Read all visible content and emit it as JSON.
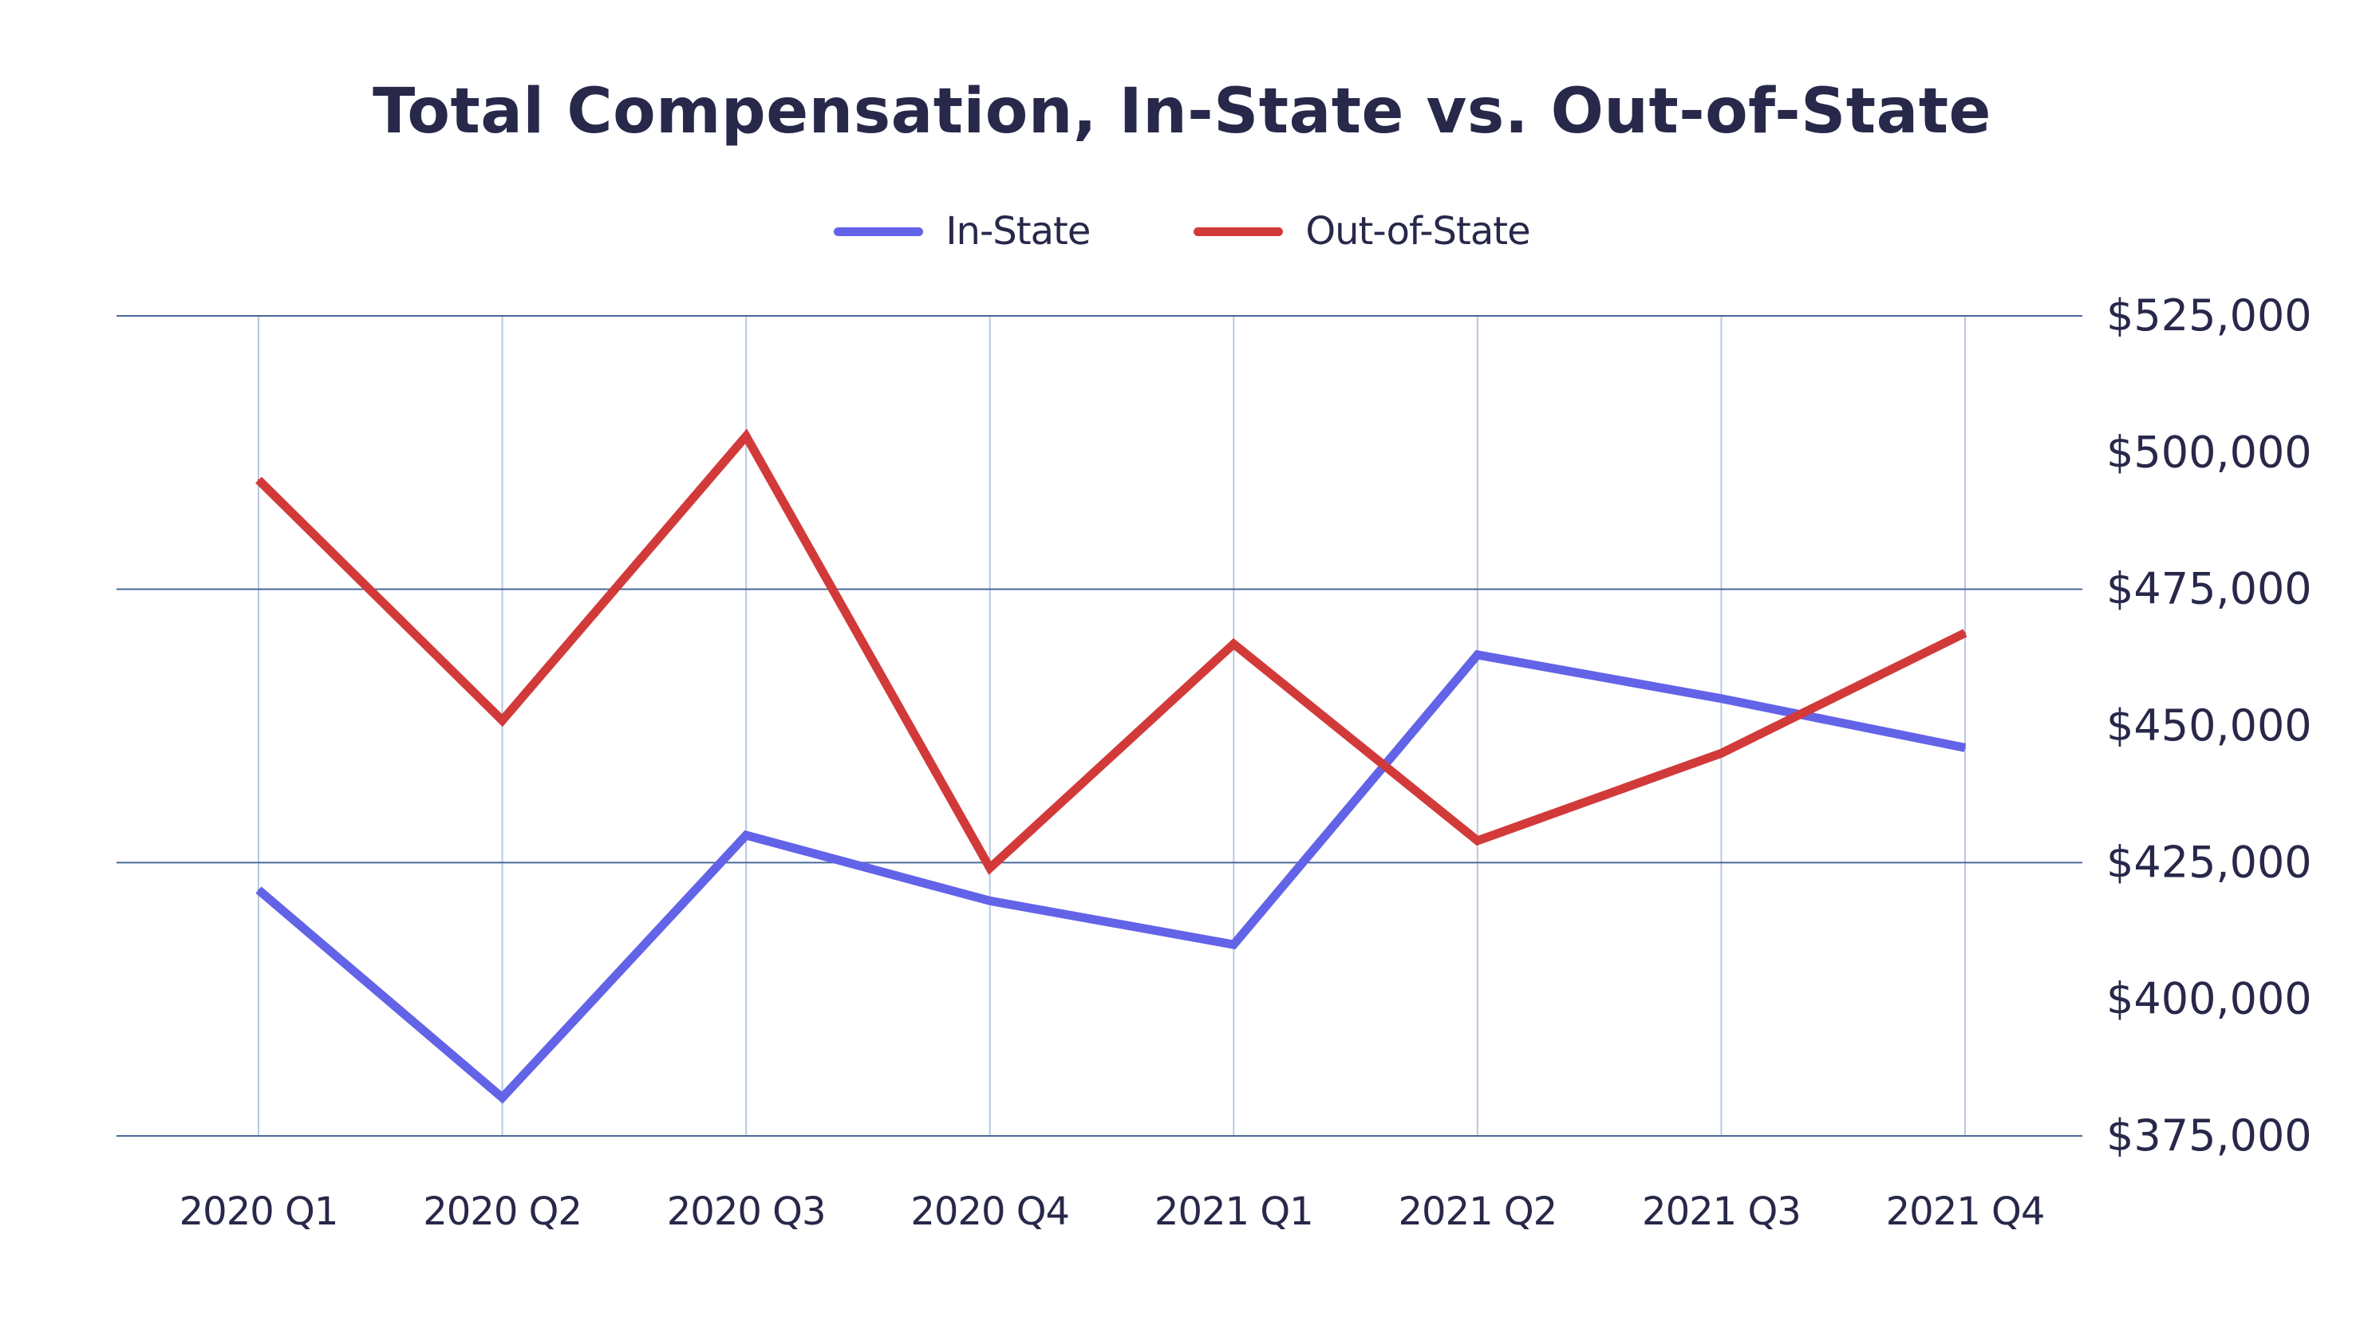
{
  "chart_data": {
    "type": "line",
    "title": "Total Compensation, In-State vs. Out-of-State",
    "categories": [
      "2020 Q1",
      "2020 Q2",
      "2020 Q3",
      "2020 Q4",
      "2021 Q1",
      "2021 Q2",
      "2021 Q3",
      "2021 Q4"
    ],
    "series": [
      {
        "name": "In-State",
        "color": "#6363e8",
        "values": [
          420000,
          382000,
          430000,
          418000,
          410000,
          463000,
          455000,
          446000
        ]
      },
      {
        "name": "Out-of-State",
        "color": "#d23a3a",
        "values": [
          495000,
          451000,
          503000,
          424000,
          465000,
          429000,
          445000,
          467000
        ]
      }
    ],
    "ylim": [
      375000,
      525000
    ],
    "y_ticks": [
      "$525,000",
      "$500,000",
      "$475,000",
      "$450,000",
      "$425,000",
      "$400,000",
      "$375,000"
    ],
    "y_axis_side": "right",
    "legend_position": "top",
    "grid": true,
    "colors": {
      "text": "#27284a",
      "major_grid": "#4a6a9a",
      "minor_grid": "#b8c8e0"
    }
  }
}
